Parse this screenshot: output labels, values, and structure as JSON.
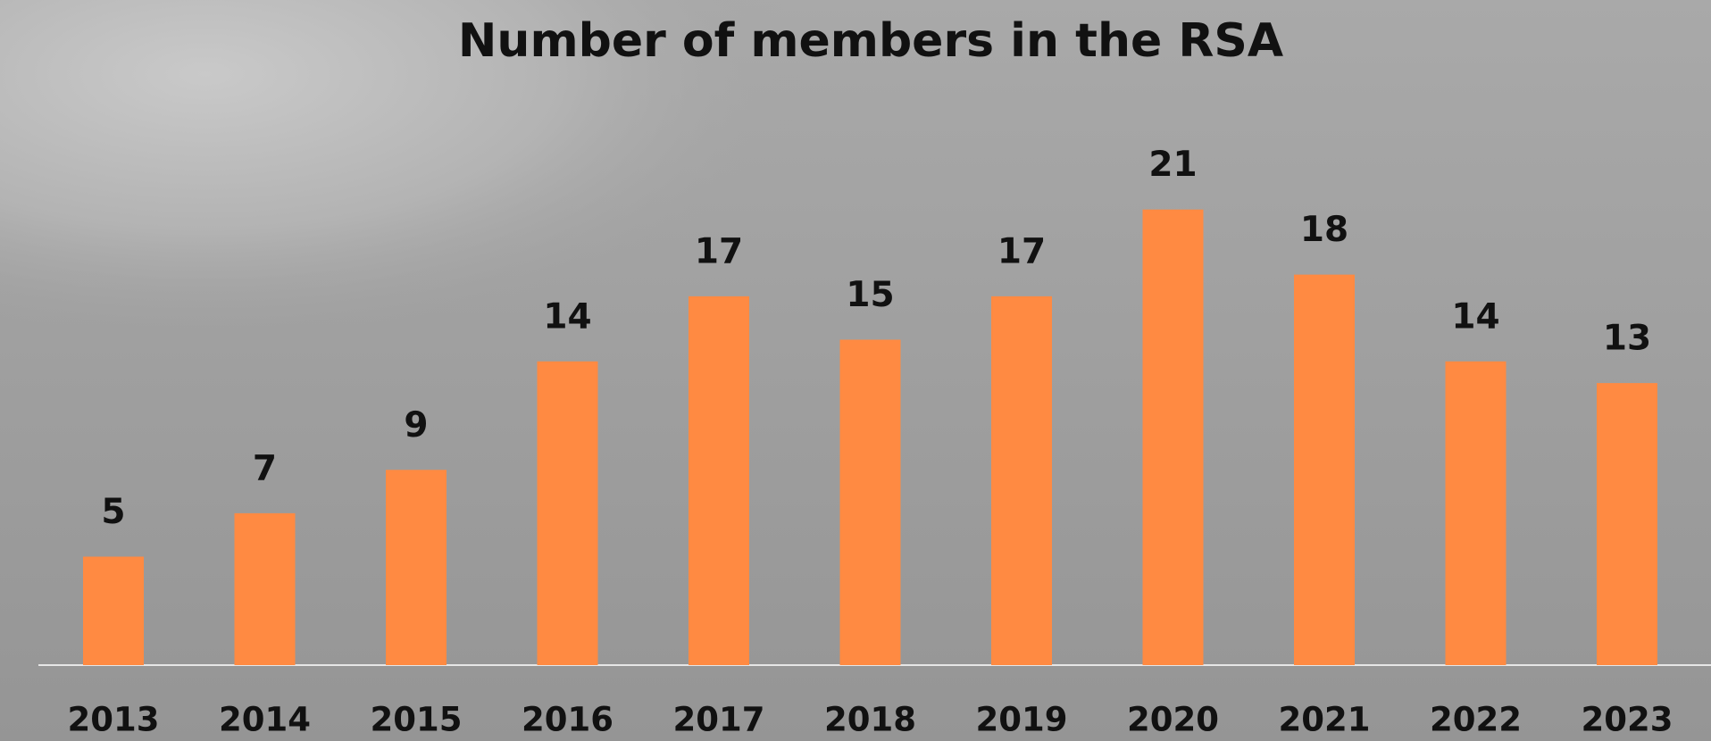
{
  "chart_data": {
    "type": "bar",
    "title": "Number of members in the RSA",
    "categories": [
      "2013",
      "2014",
      "2015",
      "2016",
      "2017",
      "2018",
      "2019",
      "2020",
      "2021",
      "2022",
      "2023"
    ],
    "values": [
      5,
      7,
      9,
      14,
      17,
      15,
      17,
      21,
      18,
      14,
      13
    ],
    "color": "#ff8a42"
  }
}
